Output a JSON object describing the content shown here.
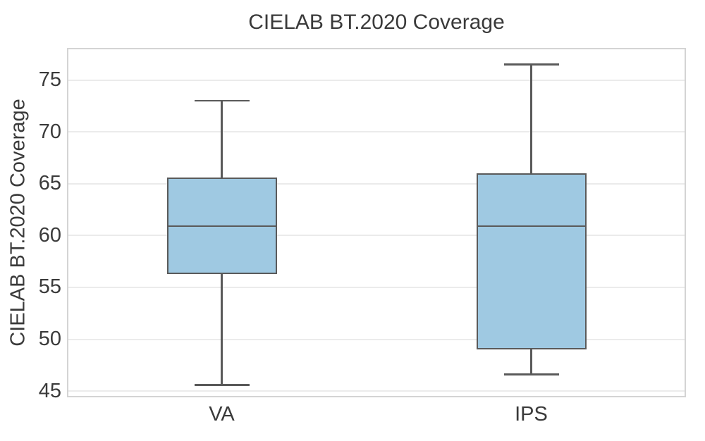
{
  "chart_data": {
    "type": "box",
    "title": "CIELAB BT.2020 Coverage",
    "xlabel": "",
    "ylabel": "CIELAB BT.2020 Coverage",
    "categories": [
      "VA",
      "IPS"
    ],
    "series": [
      {
        "name": "VA",
        "whisker_low": 45.6,
        "q1": 56.3,
        "median": 60.9,
        "q3": 65.6,
        "whisker_high": 73.0
      },
      {
        "name": "IPS",
        "whisker_low": 46.6,
        "q1": 49.0,
        "median": 60.9,
        "q3": 66.0,
        "whisker_high": 76.5
      }
    ],
    "ylim": [
      44.4,
      78.1
    ],
    "yticks": [
      45,
      50,
      55,
      60,
      65,
      70,
      75
    ],
    "grid": "horizontal",
    "legend": "none",
    "colors": {
      "box_fill": "#9fc9e2",
      "box_edge": "#5a5a5a",
      "whisker": "#5a5a5a",
      "median": "#5a5a5a",
      "grid_line": "#ebebeb",
      "spine": "#d4d4d4",
      "text": "#3a3a3a",
      "background": "#ffffff"
    }
  }
}
